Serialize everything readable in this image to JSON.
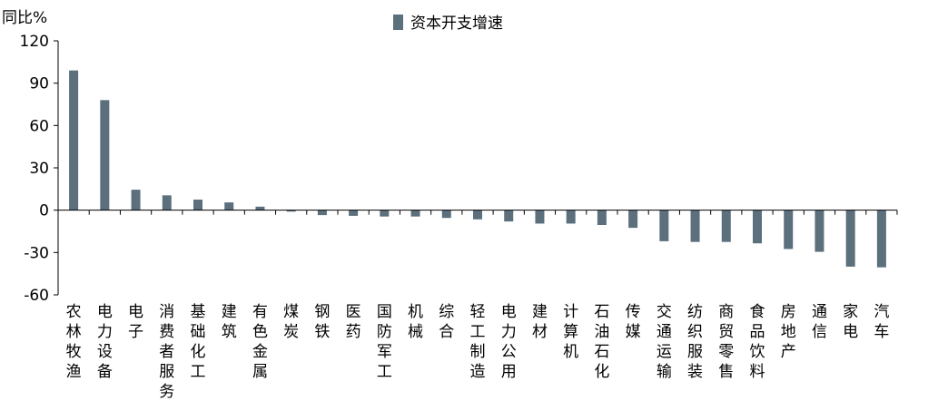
{
  "chart_data": {
    "type": "bar",
    "ylabel": "同比%",
    "legend": {
      "position": "top-center",
      "entries": [
        "资本开支增速"
      ]
    },
    "ylim": [
      -60,
      120
    ],
    "yticks": [
      120,
      90,
      60,
      30,
      0,
      -30,
      -60
    ],
    "grid": false,
    "categories": [
      "农林牧渔",
      "电力设备",
      "电子",
      "消费者服务",
      "基础化工",
      "建筑",
      "有色金属",
      "煤炭",
      "钢铁",
      "医药",
      "国防军工",
      "机械",
      "综合",
      "轻工制造",
      "电力公用",
      "建材",
      "计算机",
      "石油石化",
      "传媒",
      "交通运输",
      "纺织服装",
      "商贸零售",
      "食品饮料",
      "房地产",
      "通信",
      "家电",
      "汽车"
    ],
    "series": [
      {
        "name": "资本开支增速",
        "color": "#5b6f7c",
        "values": [
          99,
          78,
          14.5,
          10.5,
          7.5,
          5.5,
          2.5,
          -1,
          -3.5,
          -4,
          -4.5,
          -4.5,
          -5.5,
          -6.5,
          -8,
          -9.5,
          -9.5,
          -10.5,
          -12.5,
          -22,
          -22.5,
          -22.5,
          -23.5,
          -27.5,
          -29.5,
          -40,
          -40.5
        ]
      }
    ]
  }
}
